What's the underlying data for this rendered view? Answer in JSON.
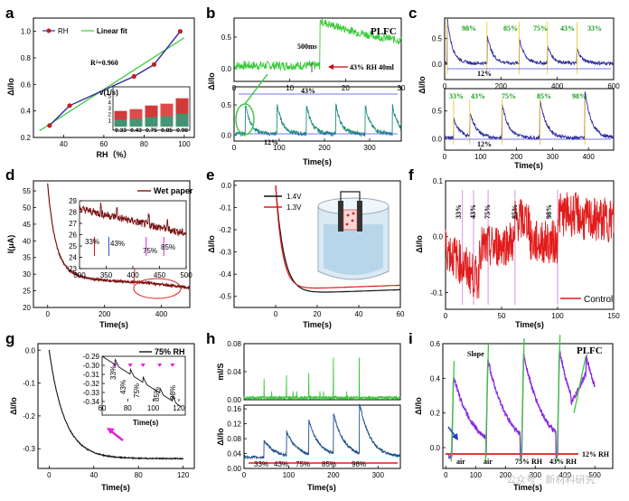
{
  "colors": {
    "navy": "#2d2a9a",
    "green": "#37c837",
    "teal": "#1e8c85",
    "darkred": "#7a1414",
    "red": "#e21b1b",
    "purple": "#8b2be2",
    "blue": "#1e4f8c",
    "magenta": "#e020e0"
  },
  "chart_data": [
    {
      "panel": "a",
      "type": "line",
      "legend": [
        "RH",
        "Linear fit"
      ],
      "xlabel": "RH（%）",
      "ylabel": "ΔI/Io",
      "x": [
        33,
        43,
        75,
        85,
        98
      ],
      "y": [
        0.29,
        0.44,
        0.66,
        0.75,
        1.0
      ],
      "xlim": [
        25,
        105
      ],
      "ylim": [
        0.2,
        1.1
      ],
      "xticks": [
        "40",
        "60",
        "80",
        "100"
      ],
      "yticks": [
        "0.2",
        "0.4",
        "0.6",
        "0.8",
        "1.0"
      ],
      "annotation": "R²=0.960",
      "inset": {
        "type": "bar",
        "title": "v(1/s)",
        "categories": [
          "0.33",
          "0.43",
          "0.75",
          "0.85",
          "0.98"
        ],
        "values": [
          2.6,
          2.9,
          3.5,
          3.8,
          4.7
        ],
        "ylim": [
          0,
          6
        ],
        "yticks": [
          "1",
          "2",
          "3",
          "4",
          "5"
        ]
      }
    },
    {
      "panel": "b",
      "type": "line",
      "title": "PLFC",
      "ylabel": "ΔI/Io",
      "xlabel": "Time(s)",
      "top": {
        "xlim": [
          0,
          30
        ],
        "ylim": [
          -0.2,
          0.8
        ],
        "xticks": [
          "0",
          "10",
          "20",
          "30"
        ],
        "yticks": [
          "0.0",
          "0.5"
        ],
        "annotations": [
          "500ms",
          "43% RH  40ml"
        ]
      },
      "bottom": {
        "xlim": [
          0,
          370
        ],
        "ylim": [
          -0.1,
          0.8
        ],
        "xticks": [
          "0",
          "100",
          "200",
          "300"
        ],
        "yticks": [
          "0.0",
          "0.5"
        ],
        "annotations": [
          "43%",
          "12%"
        ],
        "peaks_s": [
          25,
          95,
          160,
          225,
          290,
          350
        ]
      }
    },
    {
      "panel": "c",
      "type": "line",
      "xlabel": "Time(s)",
      "ylabel": "ΔI/Io",
      "top": {
        "xlim": [
          0,
          600
        ],
        "ylim": [
          -0.3,
          0.9
        ],
        "xticks": [
          "0",
          "200",
          "400",
          "600"
        ],
        "yticks": [
          "0.0",
          "0.5"
        ],
        "labels": [
          "98%",
          "85%",
          "75%",
          "43%",
          "33%"
        ],
        "baseline": "12%"
      },
      "bottom": {
        "xlim": [
          0,
          470
        ],
        "ylim": [
          -0.2,
          0.9
        ],
        "xticks": [
          "0",
          "100",
          "200",
          "300",
          "400"
        ],
        "yticks": [
          "0.0",
          "0.5"
        ],
        "labels": [
          "33%",
          "43%",
          "75%",
          "85%",
          "98%"
        ],
        "baseline": "12%"
      }
    },
    {
      "panel": "d",
      "type": "line",
      "legend": [
        "Wet paper"
      ],
      "xlabel": "Time(s)",
      "ylabel": "I(μA)",
      "xlim": [
        -50,
        500
      ],
      "ylim": [
        20,
        58
      ],
      "xticks": [
        "0",
        "200",
        "400"
      ],
      "yticks": [
        "20",
        "25",
        "30",
        "35",
        "40",
        "45",
        "50",
        "55"
      ],
      "inset": {
        "xlim": [
          300,
          500
        ],
        "ylim": [
          23,
          29
        ],
        "xticks": [
          "300",
          "350",
          "400",
          "450",
          "500"
        ],
        "yticks": [
          "23",
          "24",
          "25",
          "26",
          "27",
          "28",
          "29"
        ],
        "labels": [
          "33%",
          "43%",
          "75%",
          "85%"
        ]
      }
    },
    {
      "panel": "e",
      "type": "line",
      "legend": [
        "1.4V",
        "1.3V"
      ],
      "xlabel": "Time(s)",
      "ylabel": "ΔI/Io",
      "xlim": [
        -20,
        60
      ],
      "ylim": [
        -0.55,
        0.02
      ],
      "xticks": [
        "0",
        "20",
        "40",
        "60"
      ],
      "yticks": [
        "0.0",
        "-0.1",
        "-0.2",
        "-0.3",
        "-0.4",
        "-0.5"
      ]
    },
    {
      "panel": "f",
      "type": "line",
      "legend": [
        "Control"
      ],
      "xlabel": "Time(s)",
      "ylabel": "ΔI/Io",
      "xlim": [
        0,
        150
      ],
      "ylim": [
        -0.13,
        0.1
      ],
      "xticks": [
        "0",
        "50",
        "100",
        "150"
      ],
      "yticks": [
        "-0.1",
        "0.0",
        "0.1"
      ],
      "labels": [
        "33%",
        "43%",
        "75%",
        "85%",
        "98%"
      ]
    },
    {
      "panel": "g",
      "type": "line",
      "legend": [
        "75% RH"
      ],
      "xlabel": "Time(s)",
      "ylabel": "ΔI/Io",
      "xlim": [
        -10,
        130
      ],
      "ylim": [
        -0.36,
        0.02
      ],
      "xticks": [
        "0",
        "40",
        "80",
        "120"
      ],
      "yticks": [
        "0.0",
        "-0.1",
        "-0.2",
        "-0.3"
      ],
      "inset": {
        "xlim": [
          60,
          125
        ],
        "ylim": [
          -0.34,
          -0.29
        ],
        "xticks": [
          "60",
          "80",
          "100",
          "120"
        ],
        "yticks": [
          "-0.29",
          "-0.30",
          "-0.31",
          "-0.32",
          "-0.33",
          "-0.34"
        ],
        "labels": [
          "33%",
          "43%",
          "75%",
          "85%",
          "98%"
        ],
        "xlabel": "Time(s)"
      }
    },
    {
      "panel": "h",
      "type": "line",
      "xlabel": "Time(s)",
      "top": {
        "ylabel": "mI/S",
        "ylim": [
          0,
          0.08
        ],
        "yticks": [
          "0.00",
          "0.04",
          "0.08"
        ]
      },
      "bottom": {
        "ylabel": "ΔI/Io",
        "xlim": [
          0,
          350
        ],
        "ylim": [
          0,
          0.17
        ],
        "xticks": [
          "0",
          "100",
          "200",
          "300"
        ],
        "yticks": [
          "0.00",
          "0.04",
          "0.08",
          "0.12",
          "0.16"
        ],
        "labels": [
          "33%",
          "43%",
          "75%",
          "85%",
          "98%"
        ]
      }
    },
    {
      "panel": "i",
      "type": "line",
      "title": "PLFC",
      "xlabel": "Time(s)",
      "ylabel": "ΔI/Io",
      "xlim": [
        -10,
        560
      ],
      "ylim": [
        -0.12,
        0.6
      ],
      "xticks": [
        "0",
        "100",
        "200",
        "300",
        "400",
        "500"
      ],
      "yticks": [
        "0.0",
        "0.2",
        "0.4",
        "0.6"
      ],
      "annotations": [
        "Slope",
        "air",
        "air",
        "75% RH",
        "43% RH",
        "12% RH"
      ]
    }
  ],
  "watermark": "公众号 · 新材料研究"
}
